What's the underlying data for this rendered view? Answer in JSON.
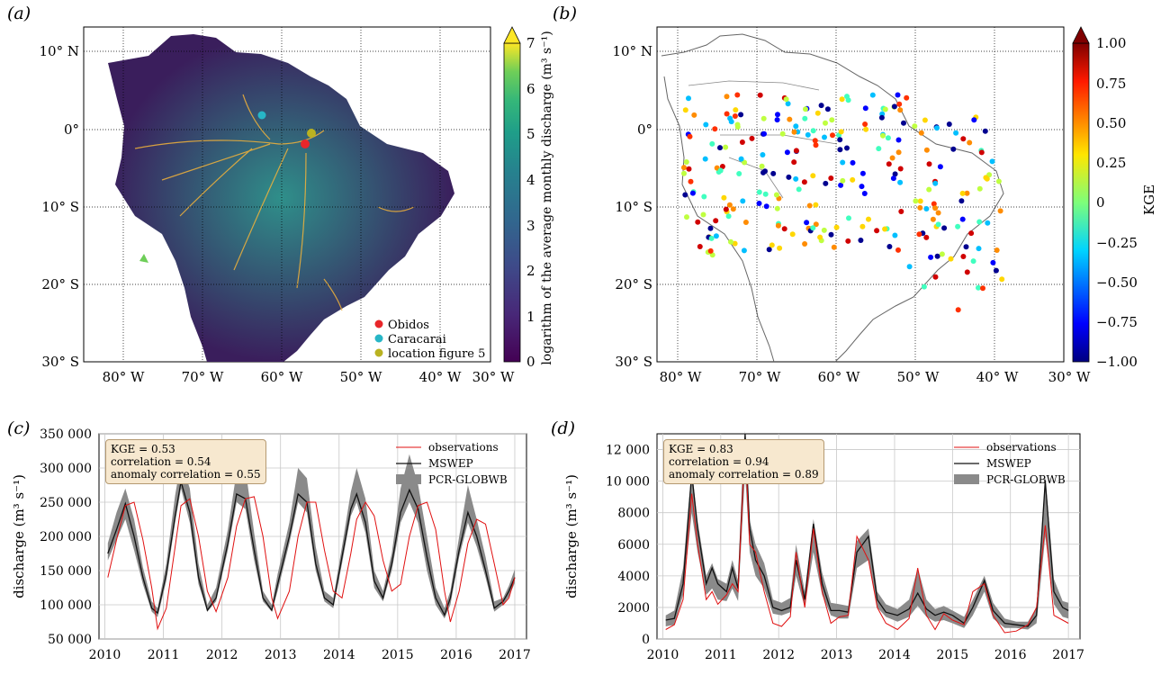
{
  "panels": {
    "a": "(a)",
    "b": "(b)",
    "c": "(c)",
    "d": "(d)"
  },
  "map_axes": {
    "lat_ticks": [
      "10° N",
      "0°",
      "10° S",
      "20° S",
      "30° S"
    ],
    "lon_ticks": [
      "80° W",
      "70° W",
      "60° W",
      "50° W",
      "40° W",
      "30° W"
    ]
  },
  "map_a": {
    "colorbar_label": "logarithm of the average monthly discharge (m³ s⁻¹)",
    "colorbar_ticks": [
      "0",
      "1",
      "2",
      "3",
      "4",
      "5",
      "6",
      "7"
    ],
    "legend": [
      {
        "label": "Obidos",
        "color": "#e8262a"
      },
      {
        "label": "Caracarai",
        "color": "#27b6c6"
      },
      {
        "label": "location figure 5",
        "color": "#b9b221"
      }
    ]
  },
  "map_b": {
    "colorbar_label": "KGE",
    "colorbar_ticks": [
      "1.00",
      "0.75",
      "0.50",
      "0.25",
      "0",
      "−0.25",
      "−0.50",
      "−0.75",
      "−1.00"
    ]
  },
  "chart_data": [
    {
      "type": "line",
      "panel": "c",
      "ylabel": "discharge (m³ s⁻¹)",
      "ylim": [
        50000,
        350000
      ],
      "y_ticks": [
        "50 000",
        "100 000",
        "150 000",
        "200 000",
        "250 000",
        "300 000",
        "350 000"
      ],
      "x_ticks": [
        "2010",
        "2011",
        "2012",
        "2013",
        "2014",
        "2015",
        "2016",
        "2017"
      ],
      "stats": [
        "KGE = 0.53",
        "correlation = 0.54",
        "anomaly correlation = 0.55"
      ],
      "legend": [
        "observations",
        "MSWEP",
        "PCR-GLOBWB"
      ],
      "x": [
        2010.05,
        2010.2,
        2010.35,
        2010.5,
        2010.65,
        2010.8,
        2010.9,
        2011.05,
        2011.2,
        2011.3,
        2011.45,
        2011.6,
        2011.75,
        2011.9,
        2012.1,
        2012.25,
        2012.4,
        2012.55,
        2012.7,
        2012.85,
        2012.95,
        2013.15,
        2013.3,
        2013.45,
        2013.6,
        2013.75,
        2013.9,
        2014.05,
        2014.2,
        2014.3,
        2014.45,
        2014.6,
        2014.75,
        2014.9,
        2015.05,
        2015.2,
        2015.35,
        2015.5,
        2015.65,
        2015.8,
        2015.9,
        2016.05,
        2016.2,
        2016.35,
        2016.5,
        2016.65,
        2016.8,
        2016.9,
        2017.0
      ],
      "observations": [
        140000,
        195000,
        245000,
        250000,
        195000,
        125000,
        65000,
        95000,
        185000,
        245000,
        255000,
        200000,
        120000,
        90000,
        140000,
        215000,
        255000,
        258000,
        200000,
        110000,
        80000,
        120000,
        200000,
        250000,
        250000,
        180000,
        120000,
        110000,
        175000,
        225000,
        250000,
        230000,
        165000,
        120000,
        130000,
        200000,
        245000,
        250000,
        210000,
        120000,
        75000,
        120000,
        190000,
        225000,
        218000,
        160000,
        100000,
        110000,
        140000
      ],
      "mswep": [
        175000,
        210000,
        248000,
        200000,
        140000,
        95000,
        88000,
        145000,
        230000,
        280000,
        235000,
        140000,
        92000,
        110000,
        190000,
        262000,
        255000,
        180000,
        110000,
        92000,
        130000,
        200000,
        262000,
        250000,
        160000,
        110000,
        100000,
        170000,
        240000,
        262000,
        220000,
        135000,
        110000,
        160000,
        235000,
        268000,
        240000,
        170000,
        110000,
        85000,
        110000,
        180000,
        235000,
        200000,
        150000,
        95000,
        105000,
        120000,
        140000
      ],
      "band_low": [
        165000,
        195000,
        225000,
        180000,
        130000,
        90000,
        82000,
        135000,
        220000,
        270000,
        220000,
        130000,
        90000,
        105000,
        180000,
        250000,
        240000,
        165000,
        105000,
        90000,
        120000,
        190000,
        250000,
        235000,
        150000,
        105000,
        95000,
        160000,
        230000,
        250000,
        205000,
        125000,
        105000,
        150000,
        220000,
        250000,
        220000,
        150000,
        100000,
        80000,
        100000,
        170000,
        220000,
        185000,
        140000,
        90000,
        100000,
        112000,
        132000
      ],
      "band_high": [
        190000,
        235000,
        270000,
        225000,
        155000,
        105000,
        95000,
        160000,
        260000,
        310000,
        270000,
        160000,
        100000,
        125000,
        210000,
        295000,
        300000,
        205000,
        120000,
        100000,
        145000,
        220000,
        300000,
        285000,
        185000,
        120000,
        110000,
        185000,
        265000,
        300000,
        255000,
        150000,
        120000,
        175000,
        270000,
        320000,
        275000,
        200000,
        125000,
        95000,
        120000,
        200000,
        275000,
        225000,
        170000,
        105000,
        110000,
        128000,
        152000
      ]
    },
    {
      "type": "line",
      "panel": "d",
      "ylabel": "discharge (m³ s⁻¹)",
      "ylim": [
        0,
        13000
      ],
      "y_ticks": [
        "0",
        "2000",
        "4000",
        "6000",
        "8000",
        "10 000",
        "12 000"
      ],
      "x_ticks": [
        "2010",
        "2011",
        "2012",
        "2013",
        "2014",
        "2015",
        "2016",
        "2017"
      ],
      "stats": [
        "KGE = 0.83",
        "correlation = 0.94",
        "anomaly correlation = 0.89"
      ],
      "legend": [
        "observations",
        "MSWEP",
        "PCR-GLOBWB"
      ],
      "x": [
        2010.05,
        2010.2,
        2010.35,
        2010.5,
        2010.6,
        2010.75,
        2010.85,
        2010.95,
        2011.1,
        2011.2,
        2011.3,
        2011.42,
        2011.5,
        2011.6,
        2011.75,
        2011.9,
        2012.05,
        2012.2,
        2012.3,
        2012.45,
        2012.6,
        2012.75,
        2012.9,
        2013.05,
        2013.2,
        2013.35,
        2013.55,
        2013.7,
        2013.85,
        2014.05,
        2014.25,
        2014.4,
        2014.55,
        2014.7,
        2014.85,
        2015.0,
        2015.2,
        2015.35,
        2015.55,
        2015.7,
        2015.9,
        2016.1,
        2016.3,
        2016.45,
        2016.6,
        2016.75,
        2016.9,
        2017.0
      ],
      "observations": [
        600,
        900,
        2500,
        9200,
        6000,
        2500,
        3000,
        2200,
        2800,
        3500,
        3000,
        12500,
        6000,
        5500,
        3000,
        1000,
        800,
        1400,
        5500,
        2000,
        7000,
        3000,
        1000,
        1400,
        1500,
        6500,
        5000,
        2000,
        1000,
        600,
        1300,
        4500,
        1500,
        600,
        1600,
        1200,
        900,
        3000,
        3500,
        1500,
        400,
        500,
        900,
        2000,
        7200,
        1500,
        1200,
        1000
      ],
      "mswep": [
        1200,
        1300,
        3500,
        10500,
        7000,
        3500,
        4500,
        3500,
        3000,
        4500,
        3200,
        13000,
        7000,
        5000,
        4000,
        2000,
        1800,
        2000,
        5000,
        2500,
        7300,
        3500,
        1800,
        1800,
        1700,
        5500,
        6500,
        2500,
        1700,
        1500,
        1900,
        2900,
        1900,
        1500,
        1700,
        1500,
        1000,
        2000,
        3700,
        1800,
        1000,
        900,
        800,
        1500,
        10000,
        3000,
        2000,
        1800
      ],
      "band_low": [
        800,
        900,
        2800,
        8000,
        5500,
        2800,
        3200,
        2500,
        2400,
        3200,
        2400,
        10500,
        5500,
        4000,
        3200,
        1600,
        1500,
        1700,
        4000,
        2000,
        5500,
        2800,
        1500,
        1300,
        1300,
        4500,
        5000,
        2000,
        1400,
        1100,
        1400,
        2100,
        1400,
        1100,
        1200,
        1000,
        700,
        1500,
        3000,
        1300,
        700,
        700,
        600,
        1000,
        6500,
        2200,
        1400,
        1300
      ],
      "band_high": [
        1500,
        1800,
        4500,
        10800,
        7500,
        4000,
        4800,
        3800,
        3500,
        5000,
        3700,
        13200,
        7500,
        6000,
        4800,
        2500,
        2300,
        2600,
        6000,
        3000,
        7600,
        4200,
        2300,
        2200,
        2100,
        6200,
        7000,
        3000,
        2200,
        1900,
        2500,
        4500,
        2500,
        1900,
        2100,
        1800,
        1400,
        2500,
        4000,
        2300,
        1300,
        1100,
        1100,
        2000,
        10300,
        3800,
        2400,
        2300
      ]
    }
  ]
}
